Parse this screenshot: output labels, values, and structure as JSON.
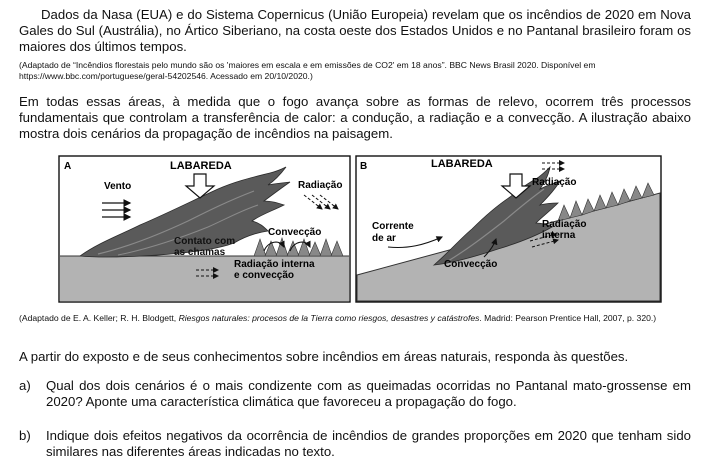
{
  "intro": {
    "paragraph": "Dados da Nasa (EUA) e do Sistema Copernicus (União Europeia) revelam que os incêndios de 2020 em Nova Gales do Sul (Austrália), no Ártico Siberiano, na costa oeste dos Estados Unidos e no Pantanal brasileiro foram os maiores dos últimos tempos.",
    "source": "(Adaptado de “Incêndios florestais pelo mundo são os 'maiores em escala e em emissões de CO2' em 18 anos”. BBC News Brasil 2020. Disponível em https://www.bbc.com/portuguese/geral-54202546. Acessado em 20/10/2020.)"
  },
  "context": {
    "paragraph": "Em todas essas áreas, à medida que o fogo avança sobre as formas de relevo, ocorrem três processos fundamentais que controlam a transferência de calor: a condução, a radiação e a convecção. A ilustração abaixo mostra dois cenários da propagação de incêndios na paisagem."
  },
  "figure": {
    "panel_a": {
      "letter": "A",
      "labareda": "LABAREDA",
      "vento": "Vento",
      "radiacao": "Radiação",
      "contato_l1": "Contato com",
      "contato_l2": "as chamas",
      "conveccao": "Convecção",
      "rad_int_l1": "Radiação interna",
      "rad_int_l2": "e convecção"
    },
    "panel_b": {
      "letter": "B",
      "labareda": "LABAREDA",
      "radiacao": "Radiação",
      "corrente_l1": "Corrente",
      "corrente_l2": "de ar",
      "rad_int_l1": "Radiação",
      "rad_int_l2": "interna",
      "conveccao": "Convecção"
    },
    "caption_prefix": "(Adaptado de E. A. Keller; R. H. Blodgett, ",
    "caption_title": "Riesgos naturales: procesos de la Tierra como riesgos, desastres y catástrofes",
    "caption_suffix": ". Madrid: Pearson Prentice Hall, 2007, p. 320.)"
  },
  "prompt": {
    "text": "A partir do exposto e de seus conhecimentos sobre incêndios em áreas naturais, responda às questões."
  },
  "questions": [
    {
      "label": "a)",
      "text": "Qual dos dois cenários é o mais condizente com as queimadas ocorridas no Pantanal mato-grossense em 2020? Aponte uma característica climática que favoreceu a propagação do fogo."
    },
    {
      "label": "b)",
      "text": "Indique dois efeitos negativos da ocorrência de incêndios de grandes proporções em 2020 que tenham sido similares nas diferentes áreas indicadas no texto."
    }
  ]
}
